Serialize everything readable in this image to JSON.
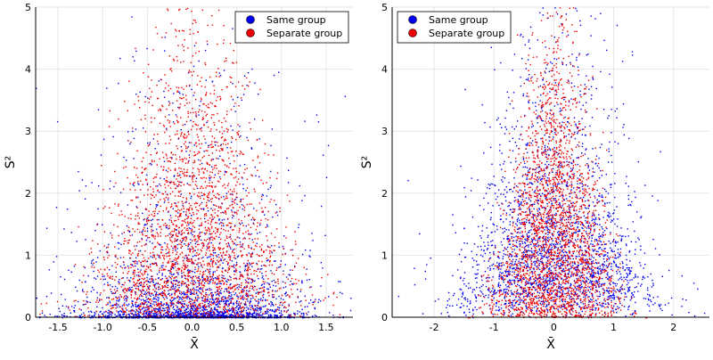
{
  "chart_data": [
    {
      "type": "scatter",
      "xlabel": "X̄",
      "ylabel": "S²",
      "xlim": [
        -1.75,
        1.8
      ],
      "ylim": [
        0,
        5
      ],
      "xticks": [
        -1.5,
        -1.0,
        -0.5,
        0.0,
        0.5,
        1.0,
        1.5
      ],
      "xtick_labels": [
        "-1.5",
        "-1.0",
        "-0.5",
        "0.0",
        "0.5",
        "1.0",
        "1.5"
      ],
      "yticks": [
        0,
        1,
        2,
        3,
        4,
        5
      ],
      "ytick_labels": [
        "0",
        "1",
        "2",
        "3",
        "4",
        "5"
      ],
      "grid": true,
      "legend_position": "top-right",
      "series": [
        {
          "name": "Same group",
          "color": "#0000ee",
          "shape": "bimodal-ridge"
        },
        {
          "name": "Separate group",
          "color": "#ee0000",
          "shape": "bell-cloud"
        }
      ]
    },
    {
      "type": "scatter",
      "xlabel": "X̄",
      "ylabel": "S²",
      "xlim": [
        -2.7,
        2.6
      ],
      "ylim": [
        0,
        5
      ],
      "xticks": [
        -2,
        -1,
        0,
        1,
        2
      ],
      "xtick_labels": [
        "-2",
        "-1",
        "0",
        "1",
        "2"
      ],
      "yticks": [
        0,
        1,
        2,
        3,
        4,
        5
      ],
      "ytick_labels": [
        "0",
        "1",
        "2",
        "3",
        "4",
        "5"
      ],
      "grid": true,
      "legend_position": "top-left",
      "series": [
        {
          "name": "Same group",
          "color": "#0000ee",
          "shape": "wide-cloud"
        },
        {
          "name": "Separate group",
          "color": "#ee0000",
          "shape": "narrow-cloud"
        }
      ]
    }
  ]
}
